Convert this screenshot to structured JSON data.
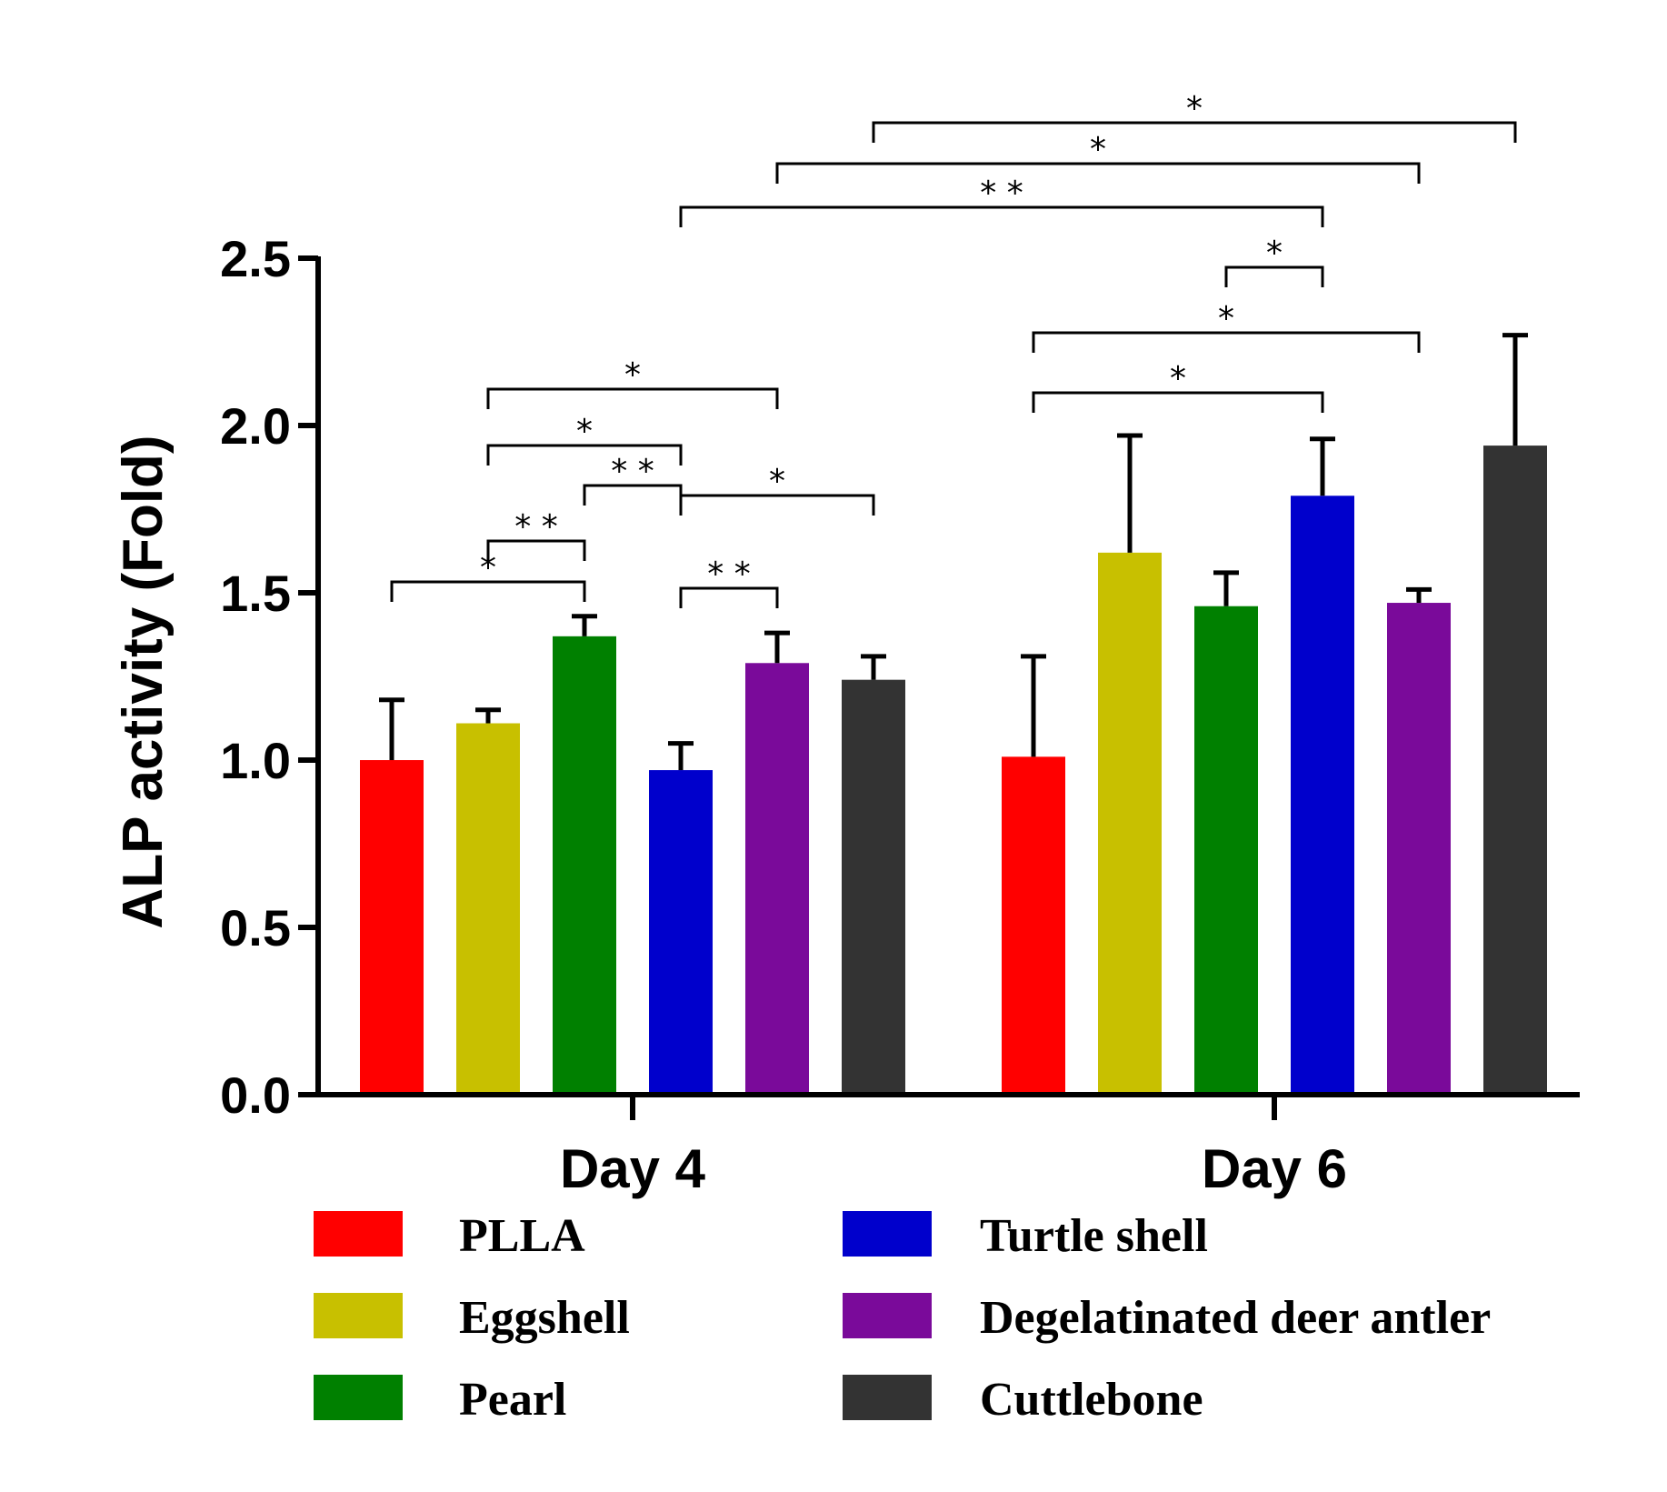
{
  "chart_data": {
    "type": "bar",
    "ylabel": "ALP activity (Fold)",
    "xlabel": "",
    "ylim": [
      0,
      2.5
    ],
    "yticks": [
      "0.0",
      "0.5",
      "1.0",
      "1.5",
      "2.0",
      "2.5"
    ],
    "categories": [
      "Day 4",
      "Day 6"
    ],
    "series": [
      {
        "name": "PLLA",
        "color": "#ff0000",
        "values": [
          1.0,
          1.01
        ],
        "errors": [
          0.18,
          0.3
        ]
      },
      {
        "name": "Eggshell",
        "color": "#c8c000",
        "values": [
          1.11,
          1.62
        ],
        "errors": [
          0.04,
          0.35
        ]
      },
      {
        "name": "Pearl",
        "color": "#008000",
        "values": [
          1.37,
          1.46
        ],
        "errors": [
          0.06,
          0.1
        ]
      },
      {
        "name": "Turtle shell",
        "color": "#0000cc",
        "values": [
          0.97,
          1.79
        ],
        "errors": [
          0.08,
          0.17
        ]
      },
      {
        "name": "Degelatinated deer antler",
        "color": "#7a0a9a",
        "values": [
          1.29,
          1.47
        ],
        "errors": [
          0.09,
          0.04
        ]
      },
      {
        "name": "Cuttlebone",
        "color": "#333333",
        "values": [
          1.24,
          1.94
        ],
        "errors": [
          0.07,
          0.33
        ]
      }
    ],
    "significance": [
      {
        "label": "*",
        "from": [
          0,
          0
        ],
        "to": [
          0,
          2
        ]
      },
      {
        "label": "**",
        "from": [
          0,
          1
        ],
        "to": [
          0,
          2
        ]
      },
      {
        "label": "**",
        "from": [
          0,
          2
        ],
        "to": [
          0,
          3
        ]
      },
      {
        "label": "*",
        "from": [
          0,
          1
        ],
        "to": [
          0,
          3
        ]
      },
      {
        "label": "*",
        "from": [
          0,
          1
        ],
        "to": [
          0,
          4
        ]
      },
      {
        "label": "*",
        "from": [
          0,
          3
        ],
        "to": [
          0,
          5
        ]
      },
      {
        "label": "**",
        "from": [
          0,
          3
        ],
        "to": [
          0,
          4
        ]
      },
      {
        "label": "*",
        "from": [
          1,
          0
        ],
        "to": [
          1,
          3
        ]
      },
      {
        "label": "*",
        "from": [
          1,
          0
        ],
        "to": [
          1,
          4
        ]
      },
      {
        "label": "*",
        "from": [
          1,
          2
        ],
        "to": [
          1,
          3
        ]
      },
      {
        "label": "**",
        "from": [
          0,
          3
        ],
        "to": [
          1,
          3
        ]
      },
      {
        "label": "*",
        "from": [
          0,
          4
        ],
        "to": [
          1,
          4
        ]
      },
      {
        "label": "*",
        "from": [
          0,
          5
        ],
        "to": [
          1,
          5
        ]
      }
    ],
    "legend": {
      "placement": "bottom",
      "columns": [
        [
          "PLLA",
          "Eggshell",
          "Pearl"
        ],
        [
          "Turtle shell",
          "Degelatinated deer antler",
          "Cuttlebone"
        ]
      ]
    }
  }
}
